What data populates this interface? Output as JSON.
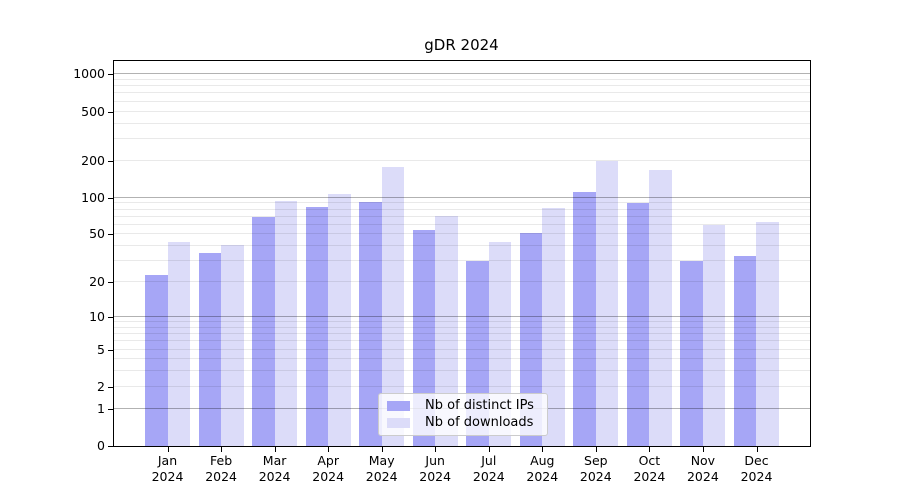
{
  "chart_data": {
    "type": "bar",
    "title": "gDR 2024",
    "categories": [
      "Jan",
      "Feb",
      "Mar",
      "Apr",
      "May",
      "Jun",
      "Jul",
      "Aug",
      "Sep",
      "Oct",
      "Nov",
      "Dec"
    ],
    "x_year_label": "2024",
    "series": [
      {
        "name": "Nb of distinct IPs",
        "color": "#a6a6f6",
        "values": [
          23,
          35,
          69,
          84,
          93,
          54,
          30,
          51,
          111,
          91,
          30,
          33
        ]
      },
      {
        "name": "Nb of downloads",
        "color": "#dcdcf9",
        "values": [
          43,
          41,
          94,
          107,
          178,
          71,
          43,
          82,
          199,
          167,
          60,
          63
        ]
      }
    ],
    "xlabel": "",
    "ylabel": "",
    "yscale": "log10(1+v)",
    "ylim": [
      0,
      1280
    ],
    "yticks": [
      0,
      1,
      2,
      5,
      10,
      20,
      50,
      100,
      200,
      500,
      1000
    ],
    "major_gridlines": [
      1,
      10,
      100,
      1000
    ],
    "minor_gridline_mantissas": [
      2,
      3,
      4,
      5,
      6,
      7,
      8,
      9
    ],
    "grid": true,
    "legend": {
      "position": "lower center",
      "labels": [
        "Nb of distinct IPs",
        "Nb of downloads"
      ]
    },
    "colors": {
      "spine": "#000000",
      "major_grid": "rgba(0,0,0,0.30)",
      "minor_grid": "rgba(0,0,0,0.085)",
      "background": "#ffffff"
    }
  }
}
